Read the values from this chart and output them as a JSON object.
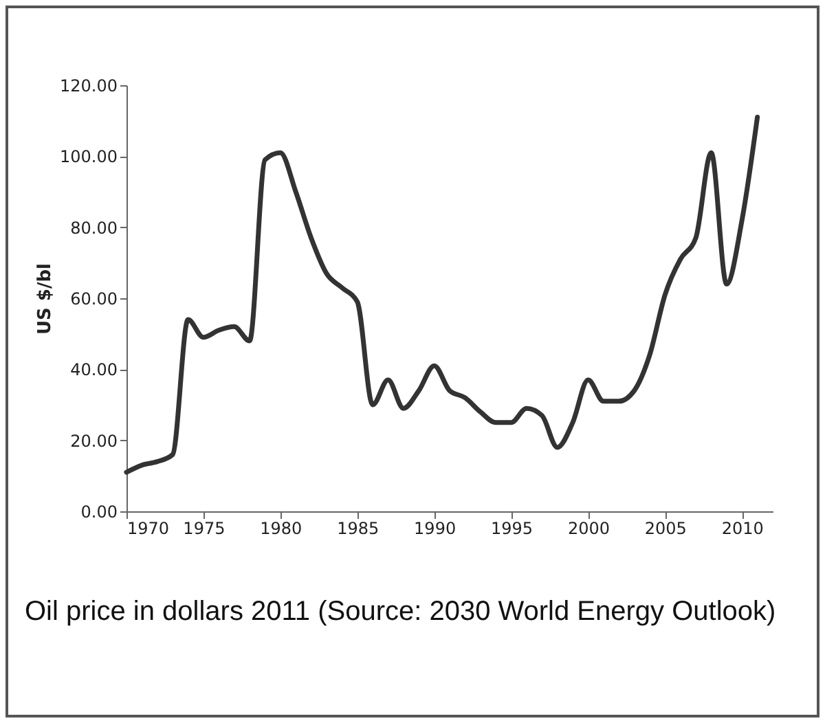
{
  "chart_data": {
    "type": "line",
    "ylabel": "US $/bl",
    "annotations": [
      "Oil price in dollars 2011 (Source: 2030 World Energy Outlook)"
    ],
    "x": [
      1970,
      1971,
      1972,
      1973,
      1974,
      1975,
      1976,
      1977,
      1978,
      1979,
      1980,
      1981,
      1982,
      1983,
      1984,
      1985,
      1986,
      1987,
      1988,
      1989,
      1990,
      1991,
      1992,
      1993,
      1994,
      1995,
      1996,
      1997,
      1998,
      1999,
      2000,
      2001,
      2002,
      2003,
      2004,
      2005,
      2006,
      2007,
      2008,
      2009,
      2010,
      2011
    ],
    "series": [
      {
        "color": "#333333",
        "values": [
          11,
          13,
          14,
          16,
          54,
          49,
          51,
          52,
          48,
          99,
          101,
          90,
          77,
          67,
          63,
          59,
          30,
          37,
          29,
          34,
          41,
          34,
          32,
          28,
          25,
          25,
          29,
          27,
          18,
          25,
          37,
          31,
          31,
          34,
          44,
          61,
          71,
          77,
          101,
          64,
          82,
          111
        ]
      }
    ],
    "xlim": [
      1970,
      2012
    ],
    "xticks": [
      1970,
      1975,
      1980,
      1985,
      1990,
      1995,
      2000,
      2005,
      2010
    ],
    "ylim": [
      0,
      120
    ],
    "yticks": [
      {
        "value": 0,
        "label": "0.00"
      },
      {
        "value": 20,
        "label": "20.00"
      },
      {
        "value": 40,
        "label": "40.00"
      },
      {
        "value": 60,
        "label": "60.00"
      },
      {
        "value": 80,
        "label": "80.00"
      },
      {
        "value": 100,
        "label": "100.00"
      },
      {
        "value": 120,
        "label": "120.00"
      }
    ],
    "grid": false,
    "marker": "none",
    "line_style": "solid"
  }
}
